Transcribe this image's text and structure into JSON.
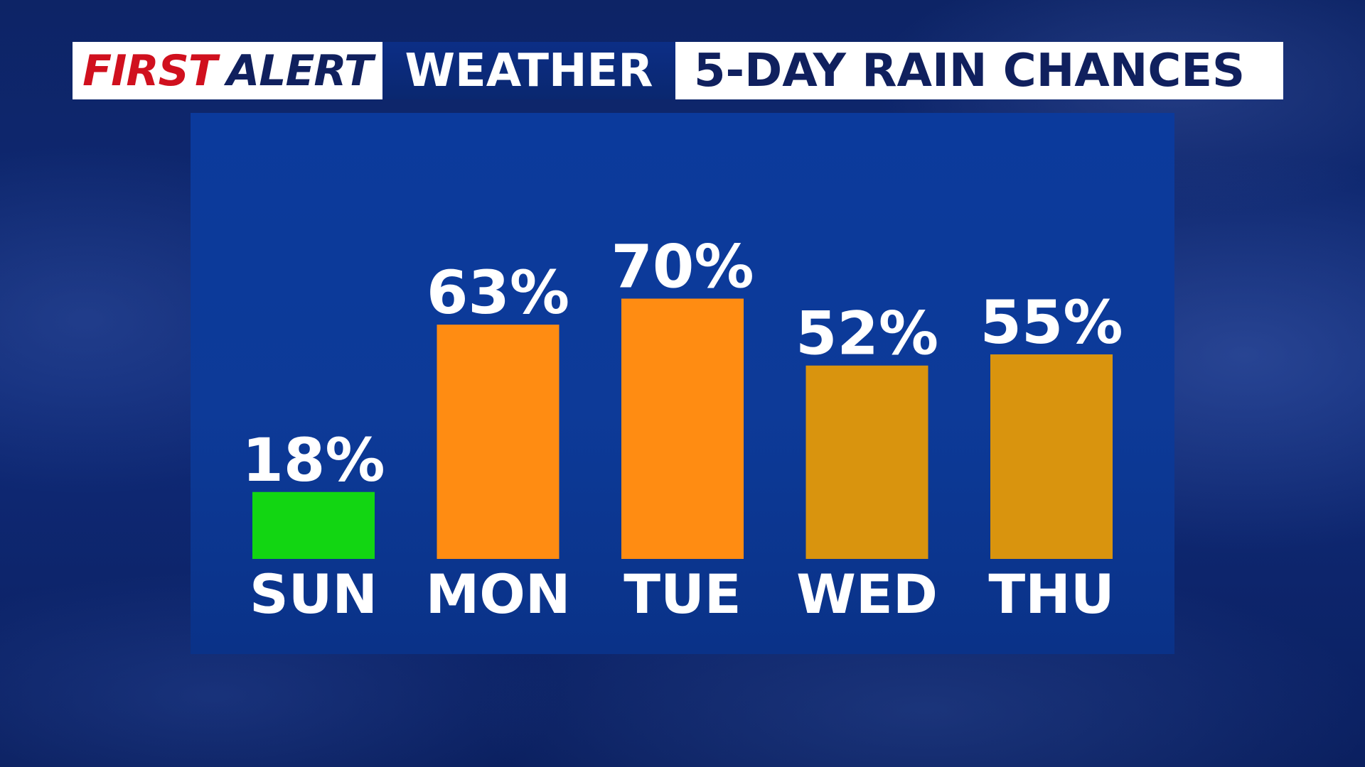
{
  "header": {
    "brand_first": "FIRST",
    "brand_alert": "ALERT",
    "section": "WEATHER",
    "title": "5-DAY RAIN CHANCES"
  },
  "colors": {
    "brand_red": "#d0101e",
    "navy_text": "#10205e",
    "panel_blue": "#0b3a9c"
  },
  "chart_data": {
    "type": "bar",
    "title": "5-DAY RAIN CHANCES",
    "xlabel": "",
    "ylabel": "",
    "unit": "%",
    "grid": false,
    "ylim": [
      0,
      100
    ],
    "categories": [
      "SUN",
      "MON",
      "TUE",
      "WED",
      "THU"
    ],
    "values": [
      18,
      63,
      70,
      52,
      55
    ],
    "value_labels": [
      "18%",
      "63%",
      "70%",
      "52%",
      "55%"
    ],
    "bar_colors": [
      "#12d612",
      "#ff8c12",
      "#ff8c12",
      "#d9940e",
      "#d9940e"
    ]
  }
}
